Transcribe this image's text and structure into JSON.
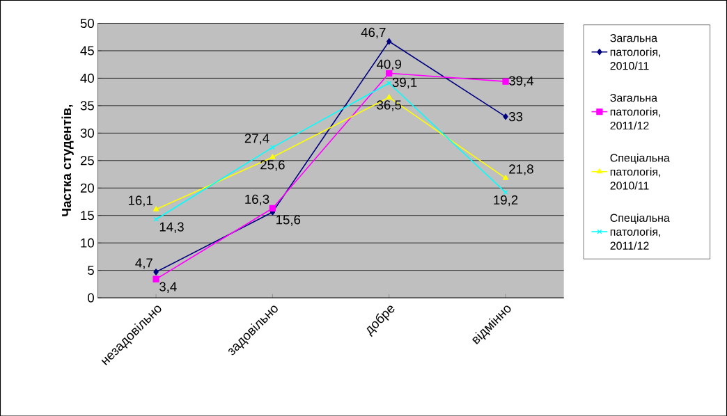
{
  "chart_data": {
    "type": "line",
    "ylabel": "Частка студентів,",
    "categories": [
      "незадовільно",
      "задовільно",
      "добре",
      "відмінно"
    ],
    "ylim": [
      0,
      50
    ],
    "yticks": [
      0,
      5,
      10,
      15,
      20,
      25,
      30,
      35,
      40,
      45,
      50
    ],
    "grid": "y",
    "legend": "right",
    "data_labels": true,
    "series": [
      {
        "name": "Загальна патологія, 2010/11",
        "color": "#000080",
        "marker": "diamond",
        "values": [
          4.7,
          15.6,
          46.7,
          33
        ],
        "value_labels": [
          "4,7",
          "15,6",
          "46,7",
          "33"
        ]
      },
      {
        "name": "Загальна патологія, 2011/12",
        "color": "#ff00ff",
        "marker": "square",
        "values": [
          3.4,
          16.3,
          40.9,
          39.4
        ],
        "value_labels": [
          "3,4",
          "16,3",
          "40,9",
          "39,4"
        ]
      },
      {
        "name": "Спеціальна патологія, 2010/11",
        "color": "#ffff00",
        "marker": "triangle",
        "values": [
          16.1,
          25.6,
          36.5,
          21.8
        ],
        "value_labels": [
          "16,1",
          "25,6",
          "36,5",
          "21,8"
        ]
      },
      {
        "name": "Спеціальна патологія, 2011/12",
        "color": "#00ffff",
        "marker": "cross",
        "values": [
          14.3,
          27.4,
          39.1,
          19.2
        ],
        "value_labels": [
          "14,3",
          "27,4",
          "39,1",
          "19,2"
        ]
      }
    ]
  }
}
